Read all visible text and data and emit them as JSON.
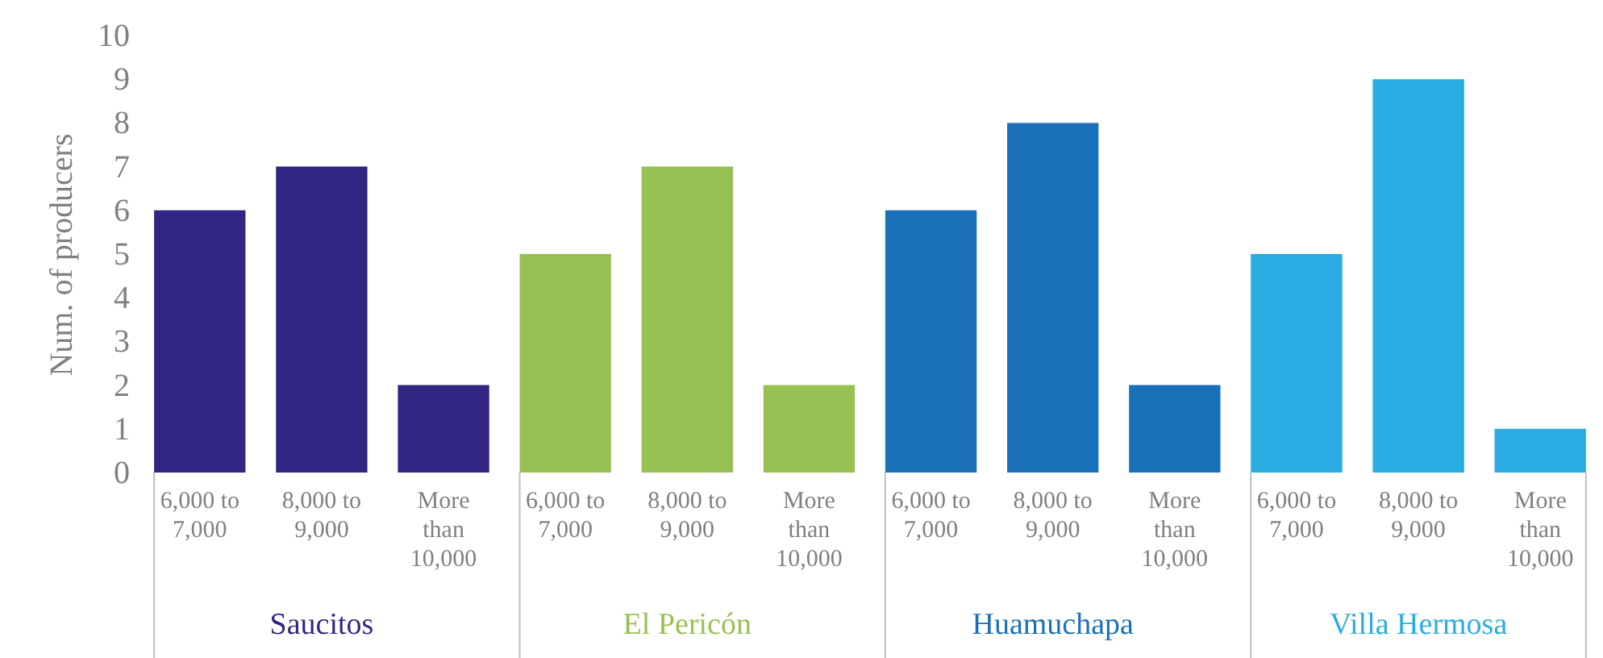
{
  "chart_data": {
    "type": "bar",
    "ylabel": "Num. of producers",
    "ylim": [
      0,
      10
    ],
    "yticks": [
      0,
      1,
      2,
      3,
      4,
      5,
      6,
      7,
      8,
      9,
      10
    ],
    "categories": [
      "6,000 to 7,000",
      "8,000 to 9,000",
      "More than 10,000",
      "6,000 to 7,000",
      "8,000 to 9,000",
      "More than 10,000",
      "6,000 to 7,000",
      "8,000 to 9,000",
      "More than 10,000",
      "6,000 to 7,000",
      "8,000 to 9,000",
      "More than 10,000"
    ],
    "series": [
      {
        "name": "Saucitos",
        "color": "#312681",
        "values": [
          6,
          7,
          2,
          null,
          null,
          null,
          null,
          null,
          null,
          null,
          null,
          null
        ]
      },
      {
        "name": "El Pericón",
        "color": "#97c153",
        "values": [
          null,
          null,
          null,
          5,
          7,
          2,
          null,
          null,
          null,
          null,
          null,
          null
        ]
      },
      {
        "name": "Huamuchapa",
        "color": "#1a70b8",
        "values": [
          null,
          null,
          null,
          null,
          null,
          null,
          6,
          8,
          2,
          null,
          null,
          null
        ]
      },
      {
        "name": "Villa Hermosa",
        "color": "#2aace2",
        "values": [
          null,
          null,
          null,
          null,
          null,
          null,
          null,
          null,
          null,
          5,
          9,
          1
        ]
      }
    ]
  }
}
